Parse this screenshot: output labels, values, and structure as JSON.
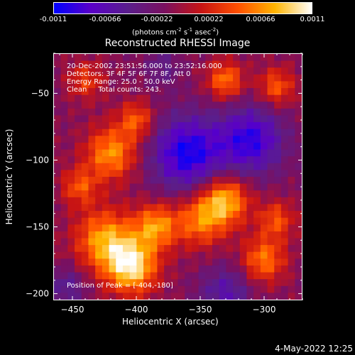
{
  "colorbar": {
    "tick_labels": [
      "-0.0011",
      "-0.00066",
      "-0.00022",
      "0.00022",
      "0.00066",
      "0.0011"
    ],
    "units_prefix": "(photons cm",
    "units_exp1": "-2",
    "units_mid": " s",
    "units_exp2": "-1",
    "units_mid2": " asec",
    "units_exp3": "-2",
    "units_suffix": ")",
    "colormap": [
      "#0000ff",
      "#5a00c8",
      "#5a1e8c",
      "#7a1060",
      "#c81414",
      "#ff5000",
      "#ffb400",
      "#ffffff"
    ]
  },
  "chart_data": {
    "type": "heatmap",
    "title": "Reconstructed RHESSI Image",
    "xlabel": "Heliocentric X (arcsec)",
    "ylabel": "Heliocentric Y (arcsec)",
    "xlim": [
      -465,
      -270
    ],
    "ylim": [
      -205,
      -20
    ],
    "x_ticks": [
      -450,
      -400,
      -350,
      -300
    ],
    "y_ticks": [
      -200,
      -150,
      -100,
      -50
    ],
    "x_tick_labels": [
      "−450",
      "−400",
      "−350",
      "−300"
    ],
    "y_tick_labels": [
      "−200",
      "−150",
      "−100",
      "−50"
    ],
    "value_range": [
      -0.0011,
      0.0011
    ],
    "grid_cols": 36,
    "grid_rows": 36,
    "blobs": [
      {
        "x": -404,
        "y": -180,
        "sigma": 14,
        "amp": 0.0011
      },
      {
        "x": -425,
        "y": -160,
        "sigma": 16,
        "amp": 0.00085
      },
      {
        "x": -385,
        "y": -150,
        "sigma": 12,
        "amp": 0.0008
      },
      {
        "x": -350,
        "y": -145,
        "sigma": 14,
        "amp": 0.0007
      },
      {
        "x": -330,
        "y": -130,
        "sigma": 13,
        "amp": 0.0009
      },
      {
        "x": -300,
        "y": -175,
        "sigma": 12,
        "amp": 0.0007
      },
      {
        "x": -290,
        "y": -145,
        "sigma": 10,
        "amp": 0.00055
      },
      {
        "x": -420,
        "y": -95,
        "sigma": 14,
        "amp": 0.0008
      },
      {
        "x": -445,
        "y": -120,
        "sigma": 10,
        "amp": 0.00055
      },
      {
        "x": -400,
        "y": -70,
        "sigma": 10,
        "amp": 0.0006
      },
      {
        "x": -330,
        "y": -40,
        "sigma": 10,
        "amp": 0.0007
      },
      {
        "x": -290,
        "y": -45,
        "sigma": 10,
        "amp": 0.0006
      },
      {
        "x": -440,
        "y": -40,
        "sigma": 10,
        "amp": 0.00045
      },
      {
        "x": -360,
        "y": -95,
        "sigma": 20,
        "amp": -0.0009
      },
      {
        "x": -310,
        "y": -85,
        "sigma": 18,
        "amp": -0.0008
      },
      {
        "x": -330,
        "y": -200,
        "sigma": 14,
        "amp": -0.0005
      },
      {
        "x": -455,
        "y": -195,
        "sigma": 10,
        "amp": -0.0004
      },
      {
        "x": -380,
        "y": -30,
        "sigma": 10,
        "amp": -0.0003
      }
    ]
  },
  "annotations": {
    "time": "20-Dec-2002 23:51:56.000 to 23:52:16.000",
    "detectors": "Detectors: 3F 4F 5F 6F 7F 8F, Att 0",
    "energy": "Energy Range: 25.0 - 50.0 keV",
    "clean": "Clean     Total counts: 243.",
    "peak": "Position of Peak = [-404,-180]"
  },
  "timestamp": "4-May-2022 12:25"
}
